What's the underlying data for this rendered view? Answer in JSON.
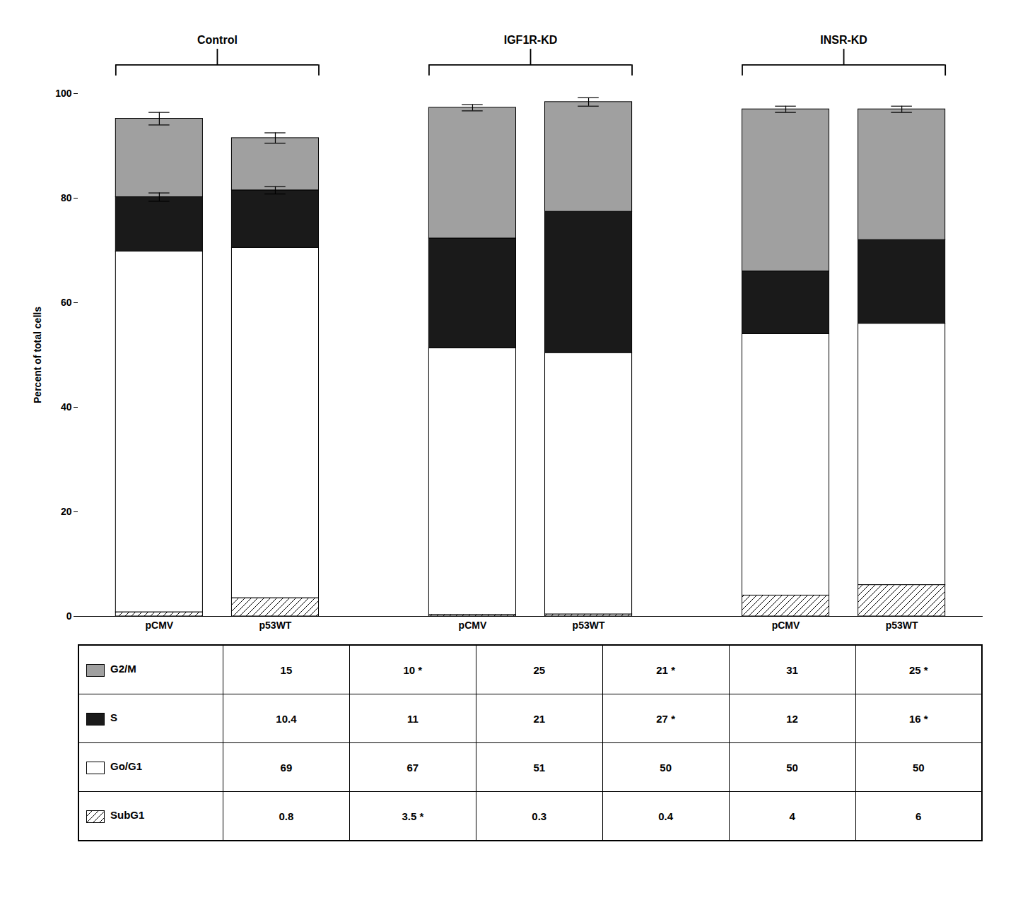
{
  "chart_data": {
    "type": "bar",
    "stacked": true,
    "categories": [
      "pCMV",
      "p53WT",
      "pCMV",
      "p53WT",
      "pCMV",
      "p53WT"
    ],
    "category_groups": [
      "Control",
      "Control",
      "IGF1R-KD",
      "IGF1R-KD",
      "INSR-KD",
      "INSR-KD"
    ],
    "ylabel": "Percent of total cells",
    "ylim": [
      0,
      100
    ],
    "yticks": [
      0,
      20,
      40,
      60,
      80,
      100
    ],
    "series": [
      {
        "name": "SubG1",
        "color": "#ffffff",
        "marker": "hatch",
        "values": [
          0.8,
          3.5,
          0.3,
          0.4,
          4.0,
          6.0
        ],
        "value_labels": [
          "0.8",
          "3.5 *",
          "0.3",
          "0.4",
          "4",
          "6"
        ]
      },
      {
        "name": "Go/G1",
        "color": "#ffffff",
        "values": [
          69.0,
          67.0,
          51.0,
          50.0,
          50.0,
          50.0
        ],
        "value_labels": [
          "69",
          "67",
          "51",
          "50",
          "50",
          "50"
        ]
      },
      {
        "name": "S",
        "color": "#1a1a1a",
        "values": [
          10.4,
          11.0,
          21.0,
          27.0,
          12.0,
          16.0
        ],
        "value_labels": [
          "10.4",
          "11",
          "21",
          "27 *",
          "12",
          "16 *"
        ],
        "error": [
          0.8,
          0.7,
          0.0,
          0.0,
          0.0,
          0.0
        ]
      },
      {
        "name": "G2/M",
        "color": "#a0a0a0",
        "values": [
          15.0,
          10.0,
          25.0,
          21.0,
          31.0,
          25.0
        ],
        "value_labels": [
          "15",
          "10 *",
          "25",
          "21 *",
          "31",
          "25 *"
        ],
        "error": [
          1.2,
          1.0,
          0.6,
          0.8,
          0.6,
          0.6
        ]
      }
    ]
  }
}
